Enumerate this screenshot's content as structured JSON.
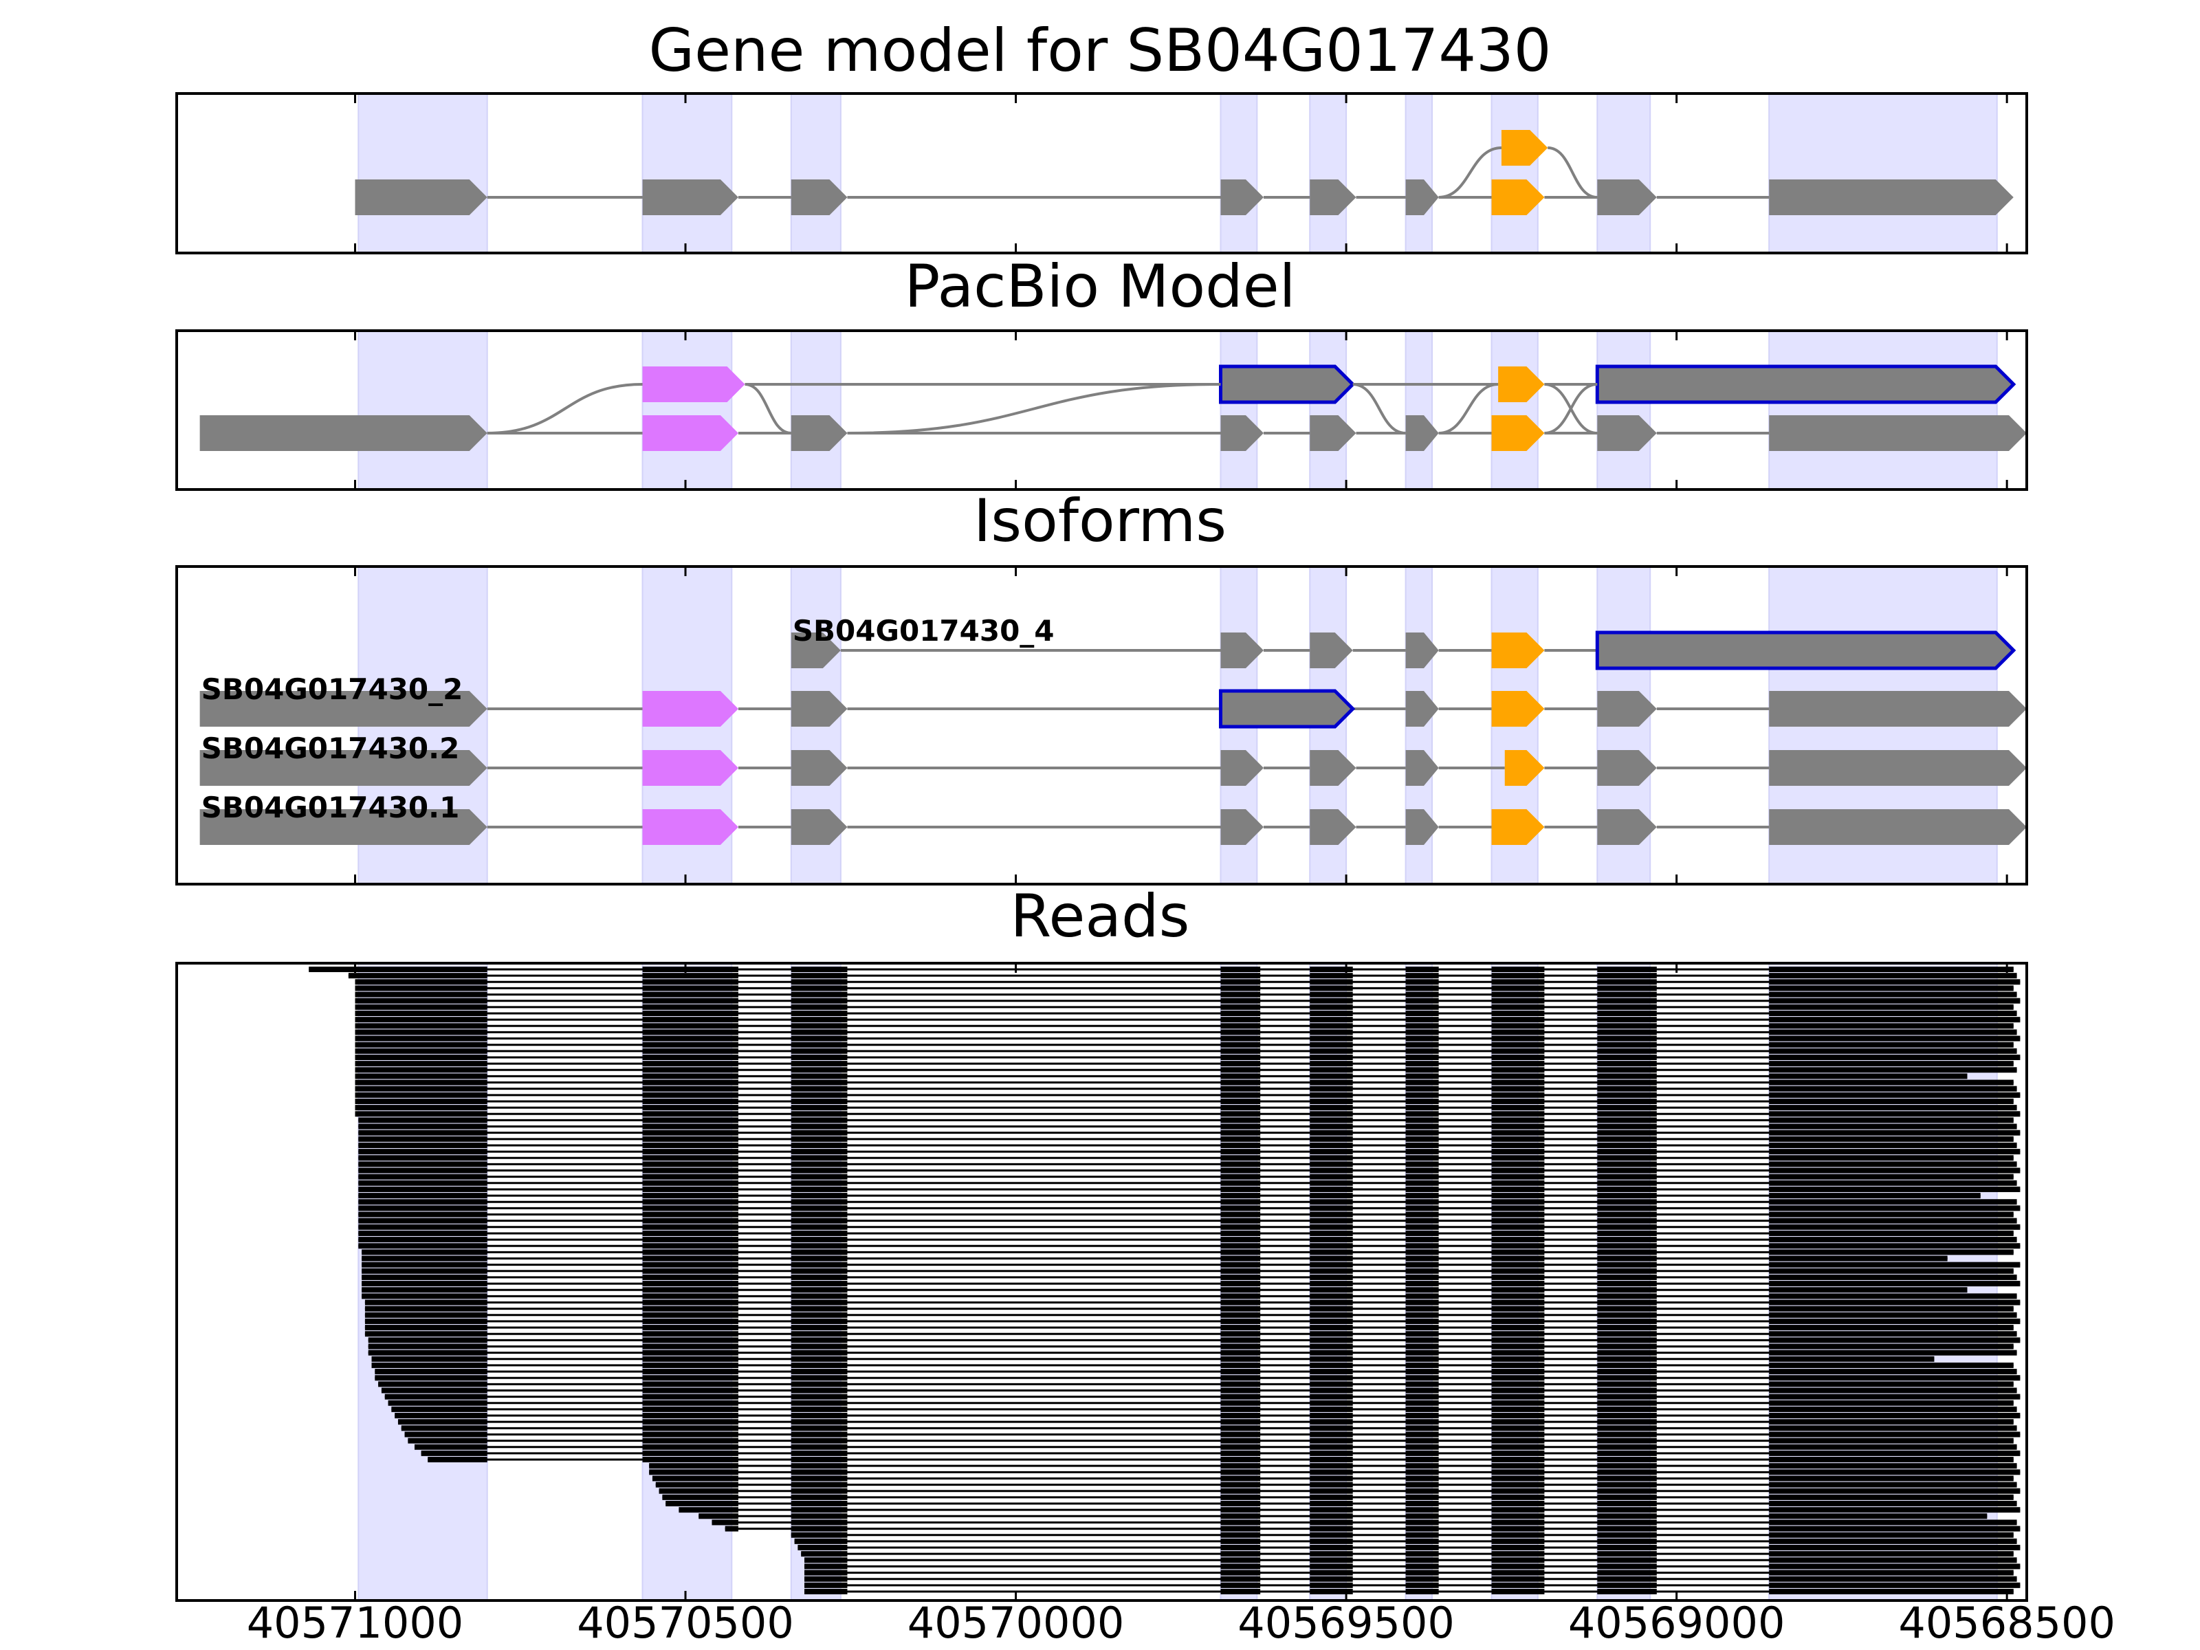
{
  "chart_data": {
    "type": "gene-model",
    "colors": {
      "exon": "#808080",
      "alt_exon_orange": "#ffa500",
      "alt_exon_pink": "#dd77ff",
      "highlight_outline": "#0000cc",
      "exon_band": "#e3e3ff",
      "read": "#000000",
      "intron": "#808080"
    },
    "xaxis": {
      "reversed": true,
      "range": [
        40571270,
        40568470
      ],
      "ticks": [
        40571000,
        40570500,
        40570000,
        40569500,
        40569000,
        40568500
      ],
      "tick_labels": [
        "40571000",
        "40570500",
        "40570000",
        "40569500",
        "40569000",
        "40568500"
      ]
    },
    "exon_bands": [
      [
        40570995,
        40570800
      ],
      [
        40570565,
        40570430
      ],
      [
        40570340,
        40570265
      ],
      [
        40569690,
        40569635
      ],
      [
        40569555,
        40569500
      ],
      [
        40569410,
        40569370
      ],
      [
        40569280,
        40569210
      ],
      [
        40569120,
        40569040
      ],
      [
        40568860,
        40568515
      ]
    ],
    "panels": [
      {
        "title": "Gene model for SB04G017430",
        "rows": 2,
        "transcripts": [
          {
            "row": 0,
            "label": "",
            "exons": [
              {
                "s": 40571000,
                "e": 40570800,
                "c": "exon"
              },
              {
                "s": 40570565,
                "e": 40570420,
                "c": "exon"
              },
              {
                "s": 40570340,
                "e": 40570255,
                "c": "exon"
              },
              {
                "s": 40569690,
                "e": 40569625,
                "c": "exon"
              },
              {
                "s": 40569555,
                "e": 40569485,
                "c": "exon"
              },
              {
                "s": 40569410,
                "e": 40569360,
                "c": "exon"
              },
              {
                "s": 40569280,
                "e": 40569200,
                "c": "alt_exon_orange"
              },
              {
                "s": 40569120,
                "e": 40569030,
                "c": "exon"
              },
              {
                "s": 40568860,
                "e": 40568490,
                "c": "exon"
              }
            ]
          },
          {
            "row": 1,
            "label": "",
            "exons": [
              {
                "s": 40569265,
                "e": 40569195,
                "c": "alt_exon_orange"
              }
            ]
          }
        ],
        "arcs": [
          [
            40569360,
            0,
            40569265,
            1
          ],
          [
            40569195,
            1,
            40569120,
            0
          ]
        ]
      },
      {
        "title": "PacBio Model",
        "rows": 2,
        "transcripts": [
          {
            "row": 0,
            "label": "",
            "exons": [
              {
                "s": 40571235,
                "e": 40570800,
                "c": "exon"
              },
              {
                "s": 40570565,
                "e": 40570420,
                "c": "alt_exon_pink"
              },
              {
                "s": 40570340,
                "e": 40570255,
                "c": "exon"
              },
              {
                "s": 40569690,
                "e": 40569625,
                "c": "exon"
              },
              {
                "s": 40569555,
                "e": 40569485,
                "c": "exon"
              },
              {
                "s": 40569410,
                "e": 40569360,
                "c": "exon"
              },
              {
                "s": 40569280,
                "e": 40569200,
                "c": "alt_exon_orange"
              },
              {
                "s": 40569120,
                "e": 40569030,
                "c": "exon"
              },
              {
                "s": 40568860,
                "e": 40568470,
                "c": "exon"
              }
            ]
          },
          {
            "row": 1,
            "label": "",
            "exons": [
              {
                "s": 40570565,
                "e": 40570410,
                "c": "alt_exon_pink"
              },
              {
                "s": 40569690,
                "e": 40569490,
                "c": "exon",
                "outline": true
              },
              {
                "s": 40569270,
                "e": 40569200,
                "c": "alt_exon_orange"
              },
              {
                "s": 40569120,
                "e": 40568490,
                "c": "exon",
                "outline": true
              }
            ]
          }
        ],
        "arcs": [
          [
            40570800,
            0,
            40570565,
            1
          ],
          [
            40570410,
            1,
            40570340,
            0
          ],
          [
            40570255,
            0,
            40569690,
            1
          ],
          [
            40569490,
            1,
            40569410,
            0
          ],
          [
            40569360,
            0,
            40569270,
            1
          ],
          [
            40569200,
            1,
            40569120,
            0
          ],
          [
            40569200,
            0,
            40569120,
            1
          ]
        ]
      },
      {
        "title": "Isoforms",
        "rows": 4,
        "transcripts": [
          {
            "row": 0,
            "label": "SB04G017430.1",
            "exons": [
              {
                "s": 40571235,
                "e": 40570800,
                "c": "exon"
              },
              {
                "s": 40570565,
                "e": 40570420,
                "c": "alt_exon_pink"
              },
              {
                "s": 40570340,
                "e": 40570255,
                "c": "exon"
              },
              {
                "s": 40569690,
                "e": 40569625,
                "c": "exon"
              },
              {
                "s": 40569555,
                "e": 40569485,
                "c": "exon"
              },
              {
                "s": 40569410,
                "e": 40569360,
                "c": "exon"
              },
              {
                "s": 40569280,
                "e": 40569200,
                "c": "alt_exon_orange"
              },
              {
                "s": 40569120,
                "e": 40569030,
                "c": "exon"
              },
              {
                "s": 40568860,
                "e": 40568470,
                "c": "exon"
              }
            ]
          },
          {
            "row": 1,
            "label": "SB04G017430.2",
            "exons": [
              {
                "s": 40571235,
                "e": 40570800,
                "c": "exon"
              },
              {
                "s": 40570565,
                "e": 40570420,
                "c": "alt_exon_pink"
              },
              {
                "s": 40570340,
                "e": 40570255,
                "c": "exon"
              },
              {
                "s": 40569690,
                "e": 40569625,
                "c": "exon"
              },
              {
                "s": 40569555,
                "e": 40569485,
                "c": "exon"
              },
              {
                "s": 40569410,
                "e": 40569360,
                "c": "exon"
              },
              {
                "s": 40569260,
                "e": 40569200,
                "c": "alt_exon_orange"
              },
              {
                "s": 40569120,
                "e": 40569030,
                "c": "exon"
              },
              {
                "s": 40568860,
                "e": 40568470,
                "c": "exon"
              }
            ]
          },
          {
            "row": 2,
            "label": "SB04G017430_2",
            "exons": [
              {
                "s": 40571235,
                "e": 40570800,
                "c": "exon"
              },
              {
                "s": 40570565,
                "e": 40570420,
                "c": "alt_exon_pink"
              },
              {
                "s": 40570340,
                "e": 40570255,
                "c": "exon"
              },
              {
                "s": 40569690,
                "e": 40569490,
                "c": "exon",
                "outline": true
              },
              {
                "s": 40569410,
                "e": 40569360,
                "c": "exon"
              },
              {
                "s": 40569280,
                "e": 40569200,
                "c": "alt_exon_orange"
              },
              {
                "s": 40569120,
                "e": 40569030,
                "c": "exon"
              },
              {
                "s": 40568860,
                "e": 40568470,
                "c": "exon"
              }
            ]
          },
          {
            "row": 3,
            "label": "SB04G017430_4",
            "exons": [
              {
                "s": 40570340,
                "e": 40570265,
                "c": "exon"
              },
              {
                "s": 40569690,
                "e": 40569625,
                "c": "exon"
              },
              {
                "s": 40569555,
                "e": 40569490,
                "c": "exon"
              },
              {
                "s": 40569410,
                "e": 40569360,
                "c": "exon"
              },
              {
                "s": 40569280,
                "e": 40569200,
                "c": "alt_exon_orange"
              },
              {
                "s": 40569120,
                "e": 40568490,
                "c": "exon",
                "outline": true
              }
            ]
          }
        ],
        "arcs": []
      }
    ],
    "reads": {
      "title": "Reads",
      "count": 100,
      "blocks": [
        [
          40570565,
          40570420
        ],
        [
          40569690,
          40569630
        ],
        [
          40569555,
          40569490
        ],
        [
          40569410,
          40569360
        ],
        [
          40569280,
          40569200
        ],
        [
          40569120,
          40569030
        ]
      ],
      "first_exon_end": 40570800,
      "second_exon_end": 40570255,
      "last_exon_start": 40568860,
      "first_exon_starts": [
        40571070,
        40571010,
        40571000,
        40571000,
        40571000,
        40571000,
        40571000,
        40571000,
        40571000,
        40571000,
        40571000,
        40571000,
        40571000,
        40571000,
        40571000,
        40571000,
        40571000,
        40571000,
        40571000,
        40571000,
        40571000,
        40571000,
        40571000,
        40571000,
        40570995,
        40570995,
        40570995,
        40570995,
        40570995,
        40570995,
        40570995,
        40570995,
        40570995,
        40570995,
        40570995,
        40570995,
        40570995,
        40570995,
        40570995,
        40570995,
        40570995,
        40570995,
        40570995,
        40570995,
        40570995,
        40570990,
        40570990,
        40570990,
        40570990,
        40570990,
        40570990,
        40570990,
        40570990,
        40570985,
        40570985,
        40570985,
        40570985,
        40570985,
        40570985,
        40570980,
        40570980,
        40570980,
        40570975,
        40570975,
        40570970,
        40570970,
        40570965,
        40570960,
        40570955,
        40570950,
        40570945,
        40570940,
        40570935,
        40570930,
        40570925,
        40570920,
        40570910,
        40570900,
        40570890
      ],
      "second_exon_starts": [
        40570555,
        40570555,
        40570550,
        40570545,
        40570540,
        40570535,
        40570530,
        40570510,
        40570480,
        40570460,
        40570440
      ],
      "third_exon_starts": [
        40570340,
        40570335,
        40570330,
        40570325,
        40570320,
        40570320
      ],
      "read_end_overrides": {
        "17": 40568560,
        "36": 40568540,
        "46": 40568590,
        "51": 40568560,
        "62": 40568610,
        "87": 40568530
      }
    }
  }
}
